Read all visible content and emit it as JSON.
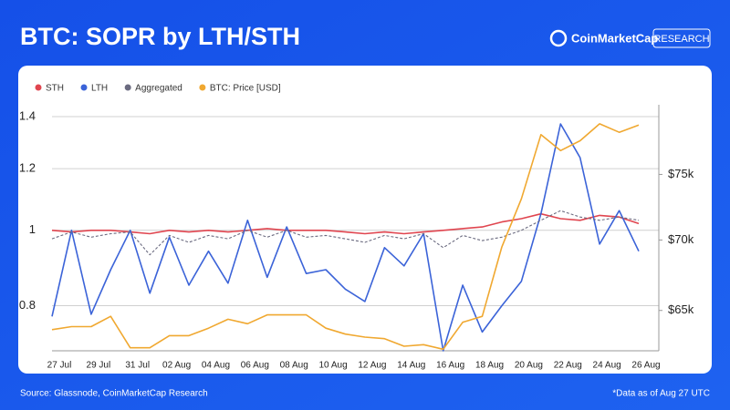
{
  "header": {
    "title": "BTC: SOPR by LTH/STH",
    "brand": "CoinMarketCap",
    "badge": "RESEARCH"
  },
  "chart_data": {
    "type": "line",
    "categories": [
      "27 Jul",
      null,
      "29 Jul",
      null,
      "31 Jul",
      null,
      "02 Aug",
      null,
      "04 Aug",
      null,
      "06 Aug",
      null,
      "08 Aug",
      null,
      "10 Aug",
      null,
      "12 Aug",
      null,
      "14 Aug",
      null,
      "16 Aug",
      null,
      "18 Aug",
      null,
      "20 Aug",
      null,
      "22 Aug",
      null,
      "24 Aug",
      null,
      "26 Aug"
    ],
    "series": [
      {
        "name": "STH",
        "color": "#e0454f",
        "style": "solid",
        "values": [
          1.0,
          0.995,
          1.0,
          1.0,
          0.995,
          0.99,
          1.0,
          0.995,
          1.0,
          0.995,
          1.0,
          1.005,
          1.0,
          1.0,
          1.0,
          0.995,
          0.99,
          0.995,
          0.99,
          0.995,
          1.0,
          1.005,
          1.01,
          1.025,
          1.035,
          1.05,
          1.035,
          1.03,
          1.045,
          1.04,
          1.02
        ]
      },
      {
        "name": "LTH",
        "color": "#3b63d8",
        "style": "solid",
        "values": [
          0.775,
          1.0,
          0.78,
          0.89,
          1.0,
          0.83,
          0.98,
          0.85,
          0.94,
          0.855,
          1.03,
          0.87,
          1.01,
          0.88,
          0.89,
          0.84,
          0.81,
          0.95,
          0.9,
          0.99,
          0.7,
          0.85,
          0.74,
          0.8,
          0.86,
          1.05,
          1.37,
          1.24,
          0.96,
          1.06,
          0.94
        ]
      },
      {
        "name": "Aggregated",
        "color": "#6b6b80",
        "style": "dashed",
        "values": [
          0.975,
          0.995,
          0.98,
          0.99,
          0.995,
          0.93,
          0.985,
          0.965,
          0.985,
          0.975,
          1.0,
          0.98,
          1.0,
          0.98,
          0.985,
          0.975,
          0.965,
          0.985,
          0.975,
          0.99,
          0.95,
          0.985,
          0.97,
          0.98,
          1.0,
          1.03,
          1.06,
          1.04,
          1.03,
          1.04,
          1.03
        ]
      },
      {
        "name": "BTC: Price [USD]",
        "color": "#f0a830",
        "style": "solid",
        "axis": "y2",
        "values": [
          63700,
          63900,
          63900,
          64600,
          62500,
          62500,
          63300,
          63300,
          63800,
          64400,
          64100,
          64700,
          64700,
          64700,
          63800,
          63400,
          63200,
          63100,
          62600,
          62700,
          62400,
          64200,
          64600,
          69500,
          73100,
          78200,
          76900,
          77700,
          79100,
          78400,
          79000
        ]
      }
    ],
    "ylim": [
      0.7,
      1.45
    ],
    "yticks": [
      0.8,
      1,
      1.2,
      1.4
    ],
    "log": true,
    "y2lim": [
      62300,
      80700
    ],
    "y2ticks": [
      {
        "value": 65000,
        "label": "$65k"
      },
      {
        "value": 70000,
        "label": "$70k"
      },
      {
        "value": 75000,
        "label": "$75k"
      }
    ],
    "y2log": true,
    "grid": true,
    "legend": "top-left"
  },
  "footer": {
    "source": "Source: Glassnode, CoinMarketCap Research",
    "note": "*Data as of Aug 27 UTC"
  }
}
